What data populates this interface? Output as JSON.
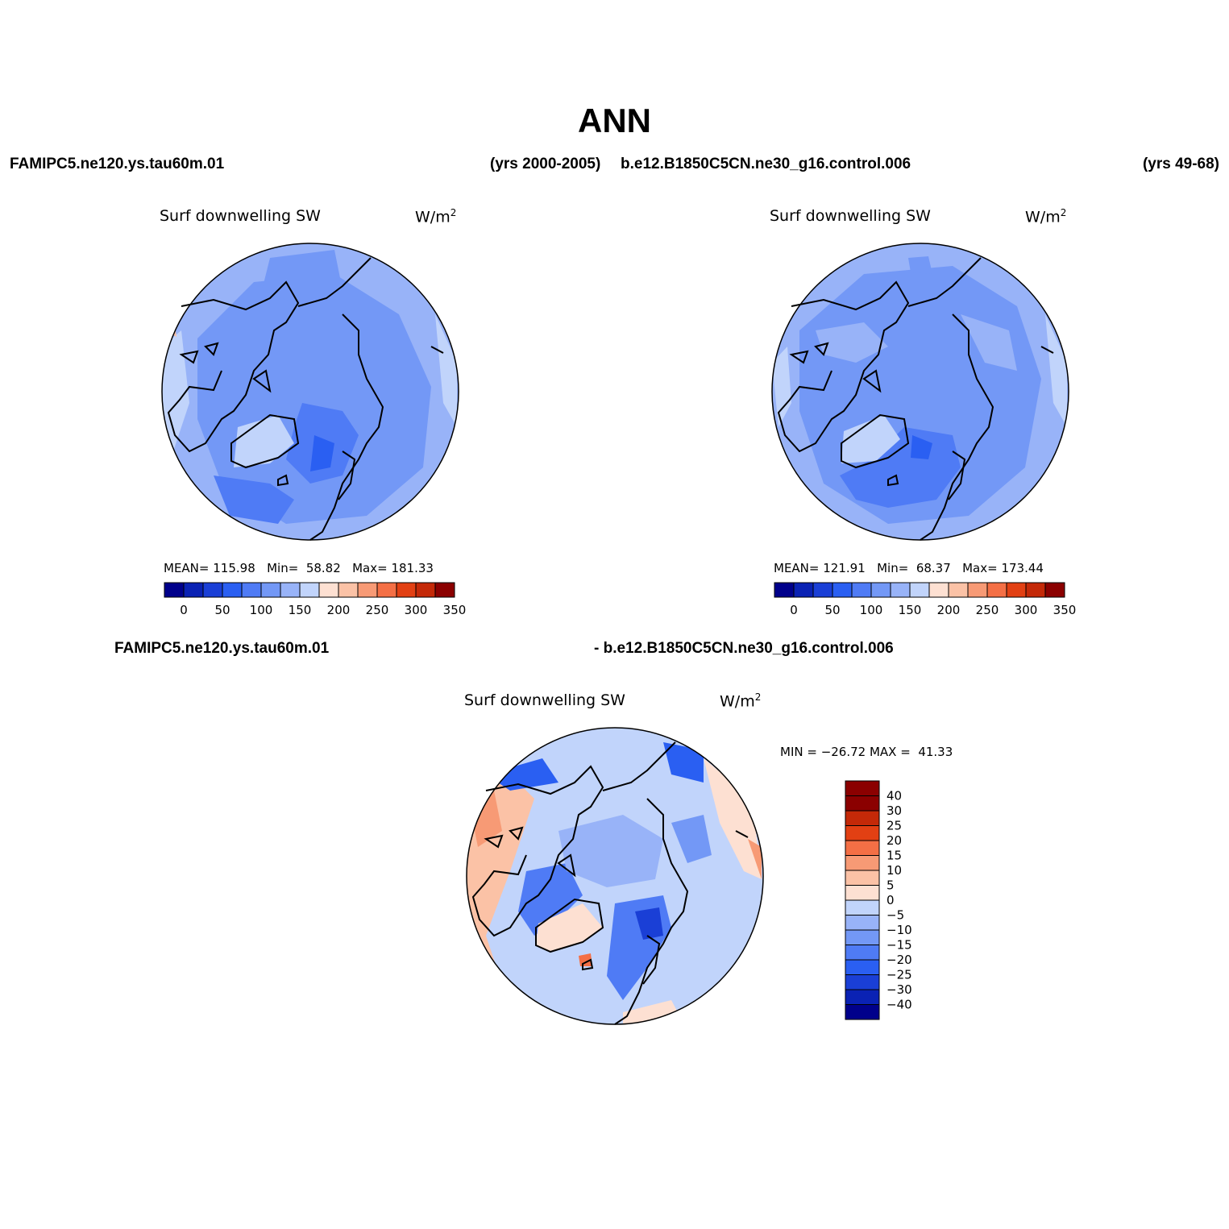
{
  "page": {
    "title": "ANN"
  },
  "header": {
    "left_case": "FAMIPC5.ne120.ys.tau60m.01",
    "left_years": "(yrs 2000-2005)",
    "right_case": "b.e12.B1850C5CN.ne30_g16.control.006",
    "right_years": "(yrs 49-68)",
    "diff_case_a": "FAMIPC5.ne120.ys.tau60m.01",
    "diff_case_b": "- b.e12.B1850C5CN.ne30_g16.control.006"
  },
  "palettes": {
    "field": [
      "#00008b",
      "#0a22b4",
      "#1a3fd6",
      "#2a5ff2",
      "#4f7bf5",
      "#7398f6",
      "#98b3f8",
      "#c1d4fb",
      "#fde0d2",
      "#fbc2a6",
      "#f79a75",
      "#f46f45",
      "#e24013",
      "#c42908",
      "#8b0000"
    ],
    "diff": [
      "#00008b",
      "#0a22b4",
      "#1a3fd6",
      "#2a5ff2",
      "#4f7bf5",
      "#7398f6",
      "#98b3f8",
      "#c1d4fb",
      "#fde0d2",
      "#fbc2a6",
      "#f79a75",
      "#f46f45",
      "#e24013",
      "#c42908",
      "#8b0000"
    ]
  },
  "panels": [
    {
      "variable": "Surf downwelling SW",
      "units_base": "W/m",
      "units_exp": "2",
      "stats": {
        "mean_label": "MEAN=",
        "mean": "115.98",
        "min_label": "Min=",
        "min": "58.82",
        "max_label": "Max=",
        "max": "181.33"
      },
      "colorbar_labels": [
        "0",
        "50",
        "100",
        "150",
        "200",
        "250",
        "300",
        "350"
      ]
    },
    {
      "variable": "Surf downwelling SW",
      "units_base": "W/m",
      "units_exp": "2",
      "stats": {
        "mean_label": "MEAN=",
        "mean": "121.91",
        "min_label": "Min=",
        "min": "68.37",
        "max_label": "Max=",
        "max": "173.44"
      },
      "colorbar_labels": [
        "0",
        "50",
        "100",
        "150",
        "200",
        "250",
        "300",
        "350"
      ]
    },
    {
      "variable": "Surf downwelling SW",
      "units_base": "W/m",
      "units_exp": "2",
      "stats_text": "MIN = −26.72 MAX =  41.33",
      "colorbar_labels": [
        "40",
        "30",
        "25",
        "20",
        "15",
        "10",
        "5",
        "0",
        "−5",
        "−10",
        "−15",
        "−20",
        "−25",
        "−30",
        "−40"
      ]
    }
  ]
}
